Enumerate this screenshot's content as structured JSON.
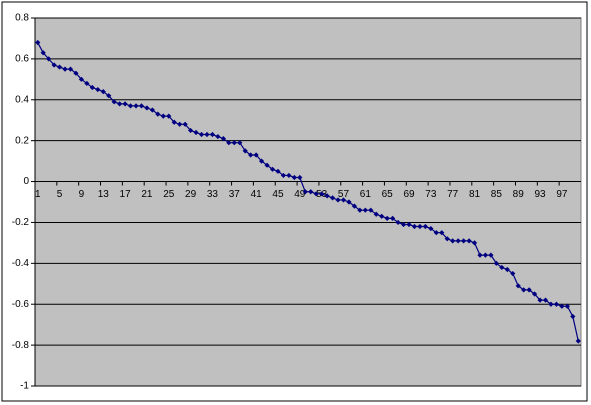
{
  "chart_data": {
    "type": "line",
    "categories": [
      "1",
      null,
      null,
      null,
      "5",
      null,
      null,
      null,
      "9",
      null,
      null,
      null,
      "13",
      null,
      null,
      null,
      "17",
      null,
      null,
      null,
      "21",
      null,
      null,
      null,
      "25",
      null,
      null,
      null,
      "29",
      null,
      null,
      null,
      "33",
      null,
      null,
      null,
      "37",
      null,
      null,
      null,
      "41",
      null,
      null,
      null,
      "45",
      null,
      null,
      null,
      "49",
      null,
      null,
      null,
      "53",
      null,
      null,
      null,
      "57",
      null,
      null,
      null,
      "61",
      null,
      null,
      null,
      "65",
      null,
      null,
      null,
      "69",
      null,
      null,
      null,
      "73",
      null,
      null,
      null,
      "77",
      null,
      null,
      null,
      "81",
      null,
      null,
      null,
      "85",
      null,
      null,
      null,
      "89",
      null,
      null,
      null,
      "93",
      null,
      null,
      null,
      "97",
      null,
      null,
      null
    ],
    "values": [
      0.68,
      0.63,
      0.6,
      0.57,
      0.56,
      0.55,
      0.55,
      0.53,
      0.5,
      0.48,
      0.46,
      0.45,
      0.44,
      0.42,
      0.39,
      0.38,
      0.38,
      0.37,
      0.37,
      0.37,
      0.36,
      0.35,
      0.33,
      0.32,
      0.32,
      0.29,
      0.28,
      0.28,
      0.25,
      0.24,
      0.23,
      0.23,
      0.23,
      0.22,
      0.21,
      0.19,
      0.19,
      0.19,
      0.15,
      0.13,
      0.13,
      0.1,
      0.08,
      0.06,
      0.05,
      0.03,
      0.03,
      0.02,
      0.02,
      -0.05,
      -0.05,
      -0.06,
      -0.06,
      -0.07,
      -0.08,
      -0.09,
      -0.09,
      -0.1,
      -0.12,
      -0.14,
      -0.14,
      -0.14,
      -0.16,
      -0.17,
      -0.18,
      -0.18,
      -0.2,
      -0.21,
      -0.21,
      -0.22,
      -0.22,
      -0.22,
      -0.23,
      -0.25,
      -0.25,
      -0.28,
      -0.29,
      -0.29,
      -0.29,
      -0.29,
      -0.3,
      -0.36,
      -0.36,
      -0.36,
      -0.4,
      -0.42,
      -0.43,
      -0.45,
      -0.51,
      -0.53,
      -0.53,
      -0.55,
      -0.58,
      -0.58,
      -0.6,
      -0.6,
      -0.61,
      -0.61,
      -0.66,
      -0.78
    ],
    "color": "#000080",
    "ylim": [
      -1,
      0.8
    ],
    "yticks": [
      -1,
      -0.8,
      -0.6,
      -0.4,
      -0.2,
      0,
      0.2,
      0.4,
      0.6,
      0.8
    ],
    "grid": true
  }
}
